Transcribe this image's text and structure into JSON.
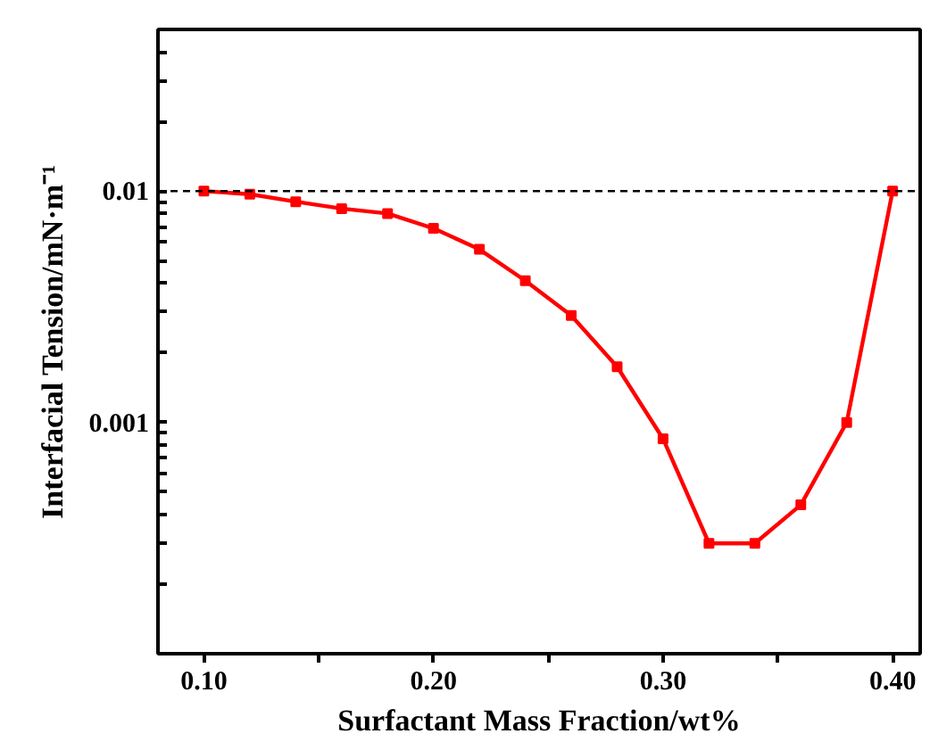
{
  "chart_data": {
    "type": "line",
    "xlabel": "Surfactant Mass Fraction/wt%",
    "ylabel": "Interfacial Tension/mN·m⁻¹",
    "x": [
      0.1,
      0.12,
      0.14,
      0.16,
      0.18,
      0.2,
      0.22,
      0.24,
      0.26,
      0.28,
      0.3,
      0.32,
      0.34,
      0.36,
      0.38,
      0.4
    ],
    "series": [
      {
        "color": "#ff0000",
        "values": [
          0.01,
          0.0097,
          0.009,
          0.0084,
          0.008,
          0.0069,
          0.0056,
          0.0041,
          0.0029,
          0.00174,
          0.00085,
          0.0003,
          0.0003,
          0.00044,
          0.001,
          0.01
        ]
      }
    ],
    "log": "y",
    "xlim": [
      0.08,
      0.412
    ],
    "ylim": [
      0.0001,
      0.05
    ],
    "xticks": [
      {
        "value": 0.1,
        "label": "0.10"
      },
      {
        "value": 0.15,
        "label": null
      },
      {
        "value": 0.2,
        "label": "0.20"
      },
      {
        "value": 0.25,
        "label": null
      },
      {
        "value": 0.3,
        "label": "0.30"
      },
      {
        "value": 0.35,
        "label": null
      },
      {
        "value": 0.4,
        "label": "0.40"
      }
    ],
    "yticks": [
      {
        "value": 0.0002,
        "label": null
      },
      {
        "value": 0.0003,
        "label": null
      },
      {
        "value": 0.0004,
        "label": null
      },
      {
        "value": 0.0005,
        "label": null
      },
      {
        "value": 0.0006,
        "label": null
      },
      {
        "value": 0.0007,
        "label": null
      },
      {
        "value": 0.0008,
        "label": null
      },
      {
        "value": 0.0009,
        "label": null
      },
      0.001,
      {
        "value": 0.002,
        "label": null
      },
      {
        "value": 0.003,
        "label": null
      },
      {
        "value": 0.004,
        "label": null
      },
      {
        "value": 0.005,
        "label": null
      },
      {
        "value": 0.006,
        "label": null
      },
      {
        "value": 0.007,
        "label": null
      },
      {
        "value": 0.008,
        "label": null
      },
      {
        "value": 0.009,
        "label": null
      },
      0.01,
      {
        "value": 0.02,
        "label": null
      },
      {
        "value": 0.03,
        "label": null
      },
      {
        "value": 0.04,
        "label": null
      }
    ],
    "ref_lines": [
      {
        "axis": "y",
        "value": 0.01,
        "color": "#000000",
        "line_style": "dashed"
      }
    ],
    "grid": false,
    "marker": "square",
    "line_style": "solid"
  }
}
